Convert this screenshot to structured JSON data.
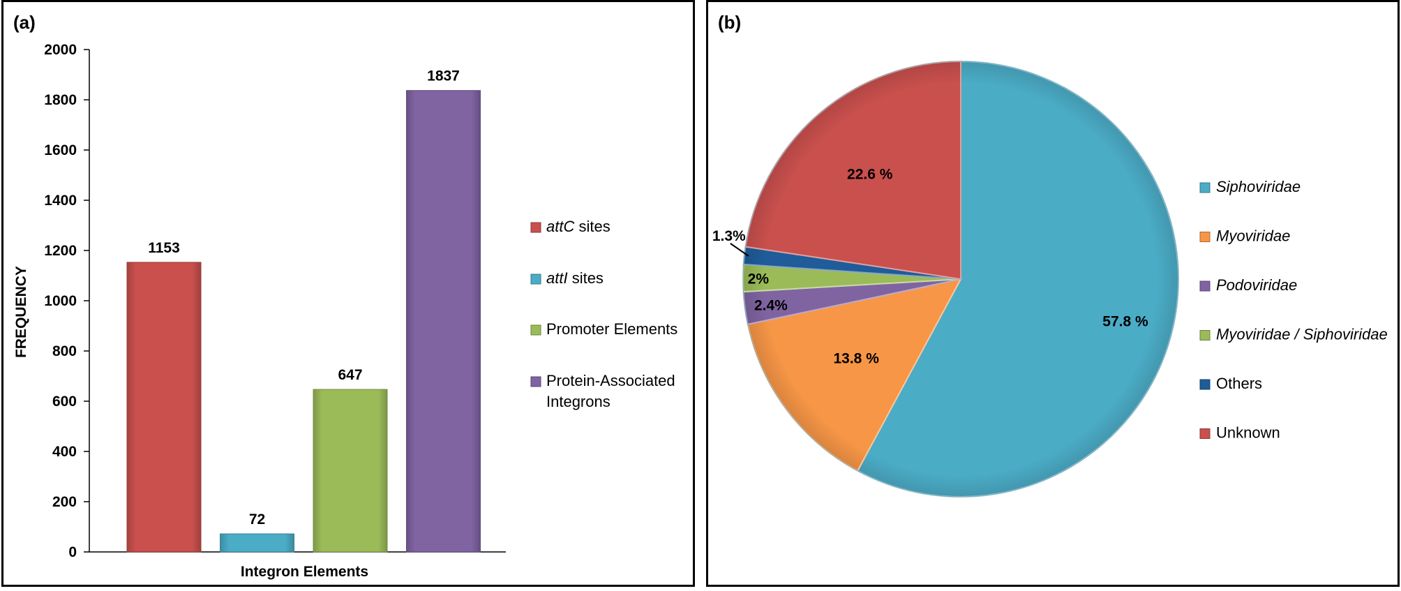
{
  "colors": {
    "red": "#C9504D",
    "blue": "#4BACC6",
    "green": "#9BBB59",
    "purple": "#8064A2",
    "orange": "#F79646",
    "darkblue": "#1F5C99"
  },
  "chart_data": [
    {
      "panel": "(a)",
      "type": "bar",
      "title": "",
      "xlabel": "Integron Elements",
      "ylabel": "FREQUENCY",
      "ylim": [
        0,
        2000
      ],
      "yticks": [
        "0",
        "200",
        "400",
        "600",
        "800",
        "1000",
        "1200",
        "1400",
        "1600",
        "1800",
        "2000"
      ],
      "categories": [
        "attC sites",
        "attI sites",
        "Promoter Elements",
        "Protein-Associated Integrons"
      ],
      "values": [
        1153,
        72,
        647,
        1837
      ],
      "data_labels": [
        "1153",
        "72",
        "647",
        "1837"
      ],
      "colors": [
        "#C9504D",
        "#4BACC6",
        "#9BBB59",
        "#8064A2"
      ],
      "legend": [
        {
          "italic": "attC",
          "rest": " sites"
        },
        {
          "italic": "attI",
          "rest": " sites"
        },
        {
          "italic": "",
          "rest": "Promoter Elements"
        },
        {
          "italic": "",
          "rest": "Protein-Associated",
          "rest2": "Integrons"
        }
      ],
      "legend_position": "right"
    },
    {
      "panel": "(b)",
      "type": "pie",
      "title": "",
      "labels": [
        "Siphoviridae",
        "Myoviridae",
        "Podoviridae",
        "Myoviridae / Siphoviridae",
        "Others",
        "Unknown"
      ],
      "values": [
        57.8,
        13.8,
        2.4,
        2,
        1.3,
        22.6
      ],
      "data_labels": [
        "57.8 %",
        "13.8 %",
        "2.4%",
        "2%",
        "1.3%",
        "22.6 %"
      ],
      "colors": [
        "#4BACC6",
        "#F79646",
        "#8064A2",
        "#9BBB59",
        "#1F5C99",
        "#C9504D"
      ],
      "legend": [
        {
          "text": "Siphoviridae",
          "italic": true
        },
        {
          "text": "Myoviridae",
          "italic": true
        },
        {
          "text": "Podoviridae",
          "italic": true
        },
        {
          "text": "Myoviridae / Siphoviridae",
          "italic": true
        },
        {
          "text": "Others",
          "italic": false
        },
        {
          "text": "Unknown",
          "italic": false
        }
      ],
      "legend_position": "right"
    }
  ]
}
